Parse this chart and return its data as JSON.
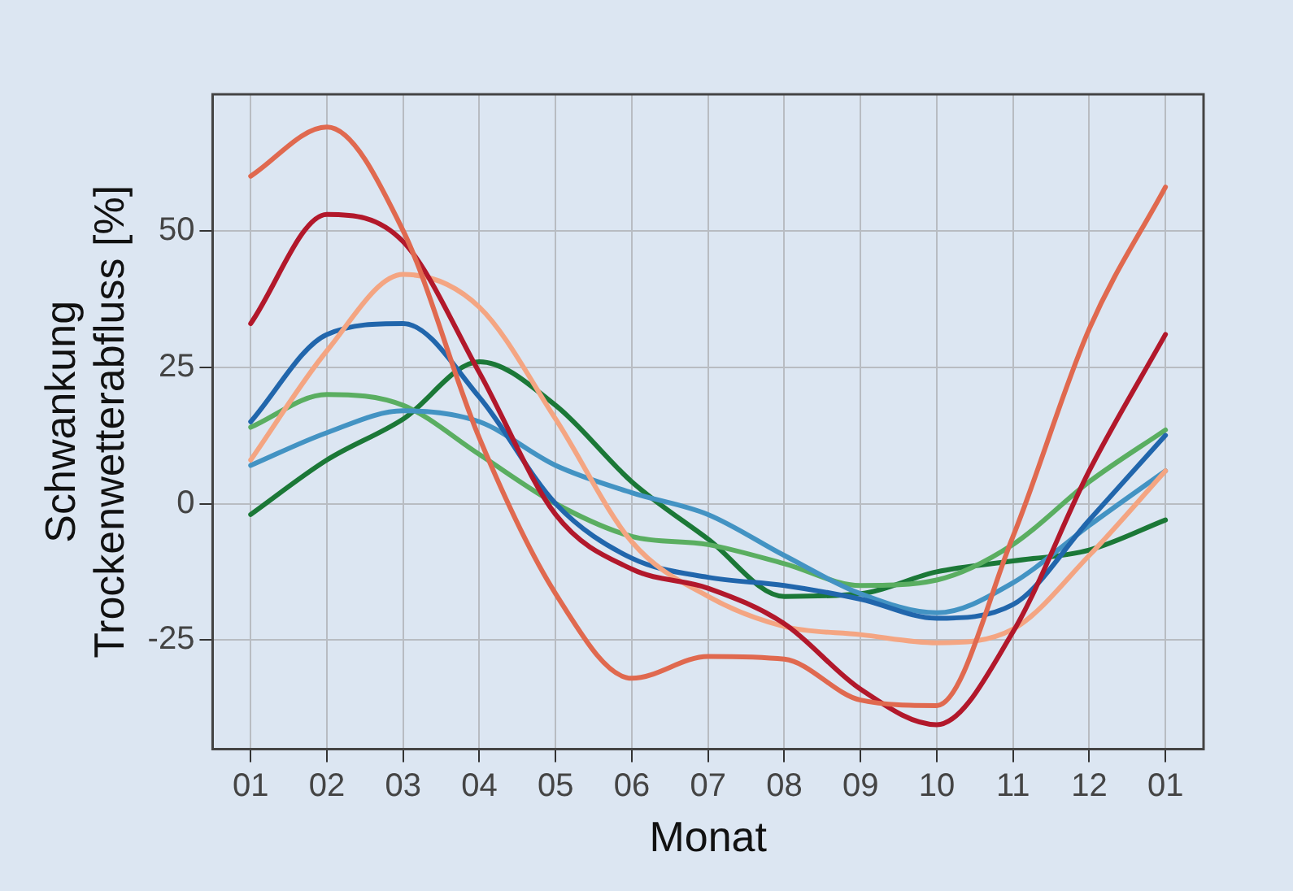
{
  "chart_data": {
    "type": "line",
    "xlabel": "Monat",
    "ylabel": "Schwankung\nTrockenwetterabfluss [%]",
    "categories": [
      "01",
      "02",
      "03",
      "04",
      "05",
      "06",
      "07",
      "08",
      "09",
      "10",
      "11",
      "12",
      "01"
    ],
    "ylim": [
      -45,
      75
    ],
    "yticks": [
      -25,
      0,
      25,
      50
    ],
    "grid": true,
    "legend": false,
    "marker": "none",
    "line_style": "solid",
    "series": [
      {
        "color": "#e0694f",
        "values": [
          60,
          69,
          50,
          12,
          -16.5,
          -32,
          -28,
          -28.5,
          -36,
          -37,
          -6,
          32,
          58
        ]
      },
      {
        "color": "#b2182b",
        "values": [
          33,
          53,
          48,
          24,
          -2,
          -12,
          -15.5,
          -22,
          -34,
          -40.5,
          -23.5,
          6,
          31
        ]
      },
      {
        "color": "#f4a582",
        "values": [
          8,
          28,
          42,
          36,
          15.5,
          -7,
          -17,
          -22.5,
          -24,
          -25.5,
          -23,
          -9.5,
          6
        ]
      },
      {
        "color": "#2166ac",
        "values": [
          15,
          31,
          33,
          19.5,
          0,
          -10,
          -13.5,
          -15,
          -17.5,
          -21,
          -18.5,
          -3,
          12.5
        ]
      },
      {
        "color": "#4393c3",
        "values": [
          7,
          13,
          17,
          15,
          7,
          2,
          -2,
          -9.5,
          -16.5,
          -20,
          -14.5,
          -4,
          6
        ]
      },
      {
        "color": "#5aae61",
        "values": [
          14,
          20,
          18,
          9,
          0,
          -6,
          -7.5,
          -11,
          -15,
          -14,
          -7.5,
          4,
          13.5
        ]
      },
      {
        "color": "#1b7837",
        "values": [
          -2,
          8,
          15.5,
          26,
          18,
          4,
          -6.5,
          -17,
          -16.5,
          -12.5,
          -10.5,
          -8.5,
          -3
        ]
      }
    ]
  }
}
